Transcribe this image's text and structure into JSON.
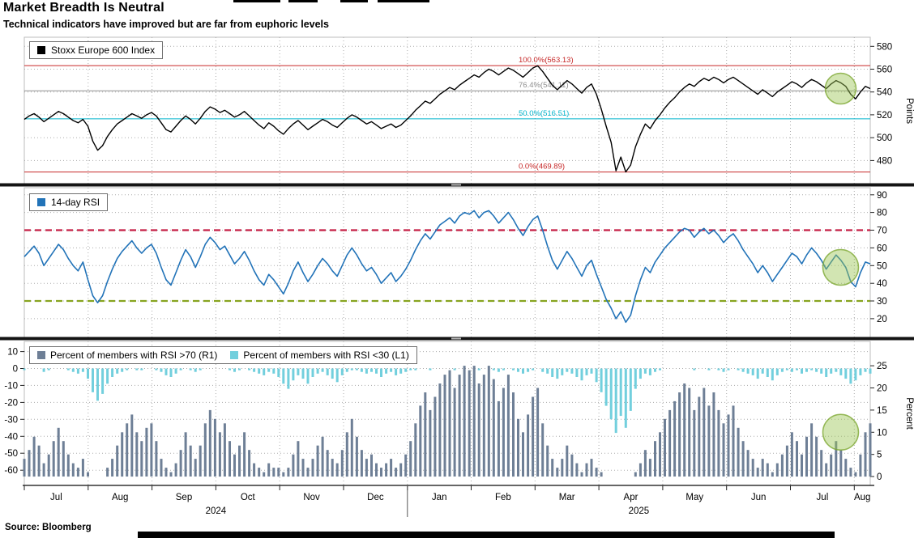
{
  "header": {
    "title": "Market Breadth Is Neutral",
    "subtitle": "Technical indicators have improved but are far from euphoric levels"
  },
  "source": "Source: Bloomberg",
  "chart_data": {
    "type": "line+bar multi-panel",
    "x_axis": {
      "months": [
        "Jul",
        "Aug",
        "Sep",
        "Oct",
        "Nov",
        "Dec",
        "Jan",
        "Feb",
        "Mar",
        "Apr",
        "May",
        "Jun",
        "Jul",
        "Aug"
      ],
      "month_span": 13.25,
      "year_divider_month_index": 6,
      "year_labels": [
        "2024",
        "2025"
      ]
    },
    "panels": [
      {
        "name": "stoxx-price",
        "legend": "Stoxx Europe 600 Index",
        "color": "#000000",
        "axis_title": "Points",
        "ylim": [
          459,
          588
        ],
        "ticks": [
          480,
          500,
          520,
          540,
          560,
          580
        ],
        "fib_lines": [
          {
            "label": "100.0%(563.13)",
            "value": 563.13,
            "color": "#c62828"
          },
          {
            "label": "76.4%(541.11)",
            "value": 541.11,
            "color": "#8f8f8f"
          },
          {
            "label": "50.0%(516.51)",
            "value": 516.51,
            "color": "#00b4cc"
          },
          {
            "label": "0.0%(469.89)",
            "value": 469.89,
            "color": "#c62828"
          }
        ],
        "highlight": {
          "x_frac": 0.965,
          "value": 543
        },
        "values": [
          516,
          519,
          521,
          518,
          514,
          517,
          520,
          523,
          521,
          518,
          515,
          513,
          516,
          510,
          497,
          489,
          493,
          501,
          507,
          512,
          515,
          518,
          521,
          519,
          517,
          520,
          522,
          519,
          513,
          507,
          505,
          510,
          515,
          519,
          516,
          512,
          517,
          523,
          527,
          525,
          522,
          524,
          521,
          518,
          520,
          523,
          519,
          515,
          511,
          508,
          513,
          510,
          506,
          503,
          508,
          512,
          515,
          511,
          507,
          510,
          513,
          516,
          514,
          511,
          509,
          513,
          517,
          520,
          518,
          515,
          512,
          514,
          511,
          508,
          510,
          512,
          509,
          511,
          515,
          519,
          524,
          528,
          532,
          530,
          534,
          538,
          541,
          544,
          542,
          546,
          549,
          552,
          555,
          553,
          557,
          560,
          558,
          555,
          558,
          561,
          559,
          556,
          553,
          557,
          561,
          563,
          558,
          552,
          546,
          542,
          546,
          550,
          547,
          543,
          539,
          544,
          547,
          538,
          525,
          510,
          496,
          471,
          483,
          470,
          476,
          492,
          503,
          512,
          508,
          515,
          520,
          526,
          531,
          535,
          540,
          544,
          547,
          545,
          549,
          552,
          550,
          553,
          551,
          548,
          551,
          553,
          550,
          547,
          544,
          541,
          538,
          542,
          539,
          536,
          540,
          543,
          546,
          549,
          547,
          544,
          548,
          551,
          549,
          546,
          543,
          547,
          550,
          548,
          545,
          538,
          534,
          540,
          545,
          543
        ]
      },
      {
        "name": "rsi",
        "legend": "14-day RSI",
        "color": "#2273b8",
        "axis_title": "",
        "ylim": [
          9,
          94
        ],
        "ticks": [
          20,
          30,
          40,
          50,
          60,
          70,
          80,
          90
        ],
        "thresholds": [
          {
            "value": 70,
            "color": "#c51f44"
          },
          {
            "value": 30,
            "color": "#87a41f"
          }
        ],
        "highlight": {
          "x_frac": 0.965,
          "value": 49
        },
        "values": [
          55,
          58,
          61,
          57,
          50,
          54,
          58,
          62,
          59,
          54,
          50,
          47,
          52,
          42,
          33,
          29,
          33,
          41,
          48,
          54,
          58,
          61,
          64,
          60,
          57,
          60,
          62,
          57,
          49,
          42,
          39,
          46,
          53,
          59,
          55,
          49,
          55,
          62,
          66,
          63,
          59,
          61,
          56,
          51,
          54,
          58,
          53,
          47,
          42,
          39,
          45,
          42,
          38,
          34,
          40,
          47,
          52,
          46,
          41,
          45,
          50,
          54,
          51,
          47,
          44,
          50,
          56,
          60,
          56,
          51,
          47,
          49,
          45,
          40,
          43,
          46,
          41,
          44,
          48,
          53,
          59,
          64,
          68,
          65,
          69,
          73,
          75,
          77,
          74,
          78,
          80,
          79,
          81,
          77,
          80,
          81,
          78,
          74,
          77,
          80,
          76,
          71,
          67,
          72,
          76,
          78,
          70,
          61,
          53,
          48,
          53,
          58,
          54,
          49,
          44,
          50,
          53,
          45,
          38,
          31,
          26,
          20,
          24,
          18,
          22,
          33,
          42,
          49,
          46,
          52,
          56,
          60,
          63,
          66,
          69,
          71,
          70,
          66,
          69,
          71,
          68,
          70,
          67,
          63,
          66,
          68,
          64,
          59,
          55,
          51,
          46,
          50,
          46,
          41,
          45,
          49,
          53,
          57,
          55,
          51,
          56,
          60,
          57,
          53,
          48,
          52,
          56,
          53,
          49,
          41,
          38,
          46,
          52,
          51
        ]
      },
      {
        "name": "breadth",
        "legend_items": [
          {
            "label": "Percent of members with RSI >70 (R1)",
            "color": "#6e7f96"
          },
          {
            "label": "Percent of members with RSI <30 (L1)",
            "color": "#72cfdd"
          }
        ],
        "axis_title": "Percent",
        "left_ylim": [
          -69,
          16
        ],
        "left_ticks": [
          10,
          0,
          -10,
          -20,
          -30,
          -40,
          -50,
          -60
        ],
        "right_ylim": [
          -2,
          30.5
        ],
        "right_ticks": [
          25,
          20,
          15,
          10,
          5,
          0
        ],
        "highlight": {
          "x_frac": 0.965,
          "value_right": 10
        },
        "rsi_above_70_pct": [
          4,
          6,
          9,
          7,
          3,
          5,
          8,
          11,
          8,
          5,
          3,
          2,
          4,
          1,
          0,
          0,
          0,
          2,
          4,
          7,
          10,
          12,
          14,
          10,
          8,
          11,
          12,
          8,
          4,
          2,
          1,
          3,
          6,
          10,
          7,
          4,
          7,
          12,
          15,
          13,
          10,
          12,
          8,
          5,
          7,
          10,
          6,
          3,
          2,
          1,
          3,
          2,
          2,
          1,
          2,
          5,
          8,
          4,
          2,
          4,
          7,
          9,
          6,
          4,
          3,
          6,
          10,
          13,
          9,
          6,
          4,
          5,
          3,
          2,
          3,
          4,
          2,
          3,
          5,
          8,
          12,
          16,
          19,
          15,
          18,
          21,
          23,
          24,
          20,
          23,
          25,
          24,
          25,
          21,
          23,
          25,
          22,
          17,
          20,
          23,
          19,
          13,
          10,
          14,
          18,
          20,
          12,
          7,
          4,
          2,
          4,
          7,
          5,
          3,
          1,
          3,
          4,
          2,
          1,
          0,
          0,
          0,
          0,
          0,
          0,
          1,
          3,
          6,
          4,
          8,
          10,
          13,
          15,
          17,
          19,
          21,
          20,
          15,
          18,
          20,
          16,
          19,
          15,
          12,
          14,
          16,
          11,
          8,
          6,
          4,
          2,
          4,
          3,
          1,
          3,
          5,
          7,
          10,
          8,
          5,
          9,
          12,
          9,
          6,
          3,
          5,
          8,
          6,
          4,
          2,
          1,
          5,
          10,
          12
        ],
        "rsi_below_30_pct_neg": [
          -1,
          0,
          0,
          0,
          -2,
          -1,
          0,
          0,
          0,
          -1,
          -2,
          -3,
          -2,
          -6,
          -14,
          -19,
          -15,
          -9,
          -5,
          -3,
          -2,
          -1,
          0,
          -1,
          -1,
          0,
          0,
          -1,
          -2,
          -4,
          -5,
          -3,
          -1,
          0,
          -1,
          -2,
          -1,
          0,
          0,
          0,
          0,
          0,
          -1,
          -2,
          -1,
          0,
          -1,
          -2,
          -3,
          -4,
          -2,
          -3,
          -5,
          -9,
          -12,
          -7,
          -4,
          -6,
          -9,
          -5,
          -3,
          -2,
          -4,
          -6,
          -8,
          -4,
          -2,
          -1,
          -1,
          -2,
          -3,
          -2,
          -3,
          -5,
          -3,
          -2,
          -4,
          -3,
          -2,
          -1,
          -1,
          0,
          0,
          -1,
          0,
          0,
          0,
          0,
          -1,
          0,
          0,
          0,
          0,
          -1,
          0,
          0,
          -1,
          -2,
          -1,
          0,
          -1,
          -2,
          -3,
          -2,
          -1,
          0,
          -2,
          -3,
          -5,
          -6,
          -4,
          -2,
          -3,
          -5,
          -7,
          -4,
          -3,
          -8,
          -14,
          -22,
          -30,
          -38,
          -28,
          -35,
          -25,
          -12,
          -6,
          -3,
          -4,
          -2,
          -1,
          0,
          0,
          0,
          0,
          0,
          0,
          -1,
          0,
          0,
          -1,
          0,
          -1,
          -2,
          -1,
          0,
          -1,
          -2,
          -3,
          -4,
          -6,
          -3,
          -5,
          -7,
          -4,
          -2,
          -1,
          -2,
          -1,
          -3,
          -2,
          -1,
          -2,
          -3,
          -5,
          -3,
          -2,
          -4,
          -6,
          -9,
          -7,
          -4,
          -2,
          -3
        ]
      }
    ],
    "highlight_color": "#9cc554"
  }
}
